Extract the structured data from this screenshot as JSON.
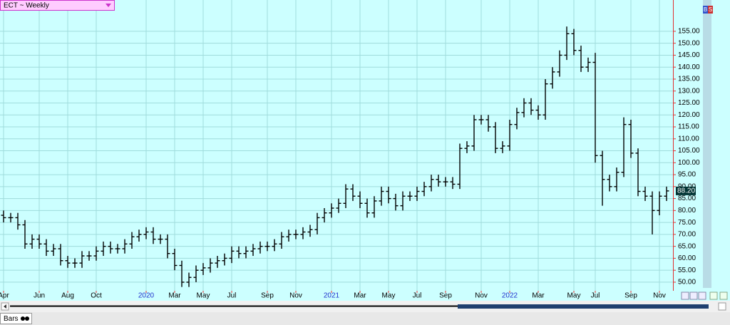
{
  "chart_data": {
    "type": "ohlc",
    "categories": [
      "Apr",
      null,
      null,
      null,
      null,
      "Jun",
      null,
      null,
      null,
      "Aug",
      null,
      null,
      null,
      "Oct",
      null,
      null,
      null,
      null,
      null,
      null,
      "2020",
      null,
      null,
      null,
      "Mar",
      null,
      null,
      null,
      "May",
      null,
      null,
      null,
      "Jul",
      null,
      null,
      null,
      null,
      "Sep",
      null,
      null,
      null,
      "Nov",
      null,
      null,
      null,
      null,
      "2021",
      null,
      null,
      null,
      "Mar",
      null,
      null,
      null,
      "May",
      null,
      null,
      null,
      "Jul",
      null,
      null,
      null,
      "Sep",
      null,
      null,
      null,
      null,
      "Nov",
      null,
      null,
      null,
      "2022",
      null,
      null,
      null,
      "Mar",
      null,
      null,
      null,
      null,
      "May",
      null,
      null,
      "Jul",
      null,
      null,
      null,
      null,
      "Sep",
      null,
      null,
      null,
      "Nov",
      null
    ],
    "open": [
      78,
      77,
      77,
      74,
      66,
      68,
      66,
      63,
      64,
      59,
      58,
      58,
      61,
      61,
      63,
      65,
      64,
      64,
      66,
      69,
      70,
      71,
      68,
      68,
      62,
      57,
      50,
      52,
      55,
      56,
      58,
      59,
      60,
      63,
      62,
      63,
      64,
      65,
      65,
      66,
      69,
      70,
      70,
      71,
      72,
      77,
      79,
      81,
      83,
      89,
      86,
      83,
      79,
      84,
      88,
      85,
      82,
      86,
      86,
      88,
      90,
      93,
      92,
      92,
      91,
      106,
      107,
      118,
      118,
      115,
      106,
      107,
      116,
      121,
      125,
      122,
      120,
      133,
      138,
      145,
      154,
      147,
      140,
      142,
      103,
      93,
      90,
      96,
      116,
      104,
      88,
      86,
      80,
      86
    ],
    "high": [
      80,
      79,
      79,
      76,
      70,
      70,
      68,
      66,
      66,
      61,
      60,
      63,
      63,
      65,
      67,
      67,
      66,
      68,
      71,
      72,
      73,
      73,
      70,
      70,
      64,
      59,
      54,
      57,
      58,
      60,
      61,
      62,
      65,
      65,
      65,
      66,
      67,
      67,
      68,
      71,
      72,
      72,
      73,
      74,
      79,
      81,
      83,
      85,
      91,
      91,
      88,
      85,
      86,
      90,
      90,
      87,
      88,
      88,
      90,
      92,
      95,
      95,
      94,
      94,
      108,
      109,
      120,
      120,
      120,
      117,
      109,
      118,
      123,
      127,
      127,
      124,
      135,
      140,
      147,
      157,
      156,
      149,
      144,
      146,
      105,
      95,
      98,
      119,
      118,
      106,
      90,
      88,
      88,
      90
    ],
    "low": [
      75,
      75,
      72,
      64,
      64,
      64,
      61,
      61,
      57,
      56,
      56,
      56,
      59,
      59,
      61,
      62,
      62,
      62,
      64,
      67,
      68,
      66,
      66,
      60,
      55,
      48,
      48,
      50,
      53,
      54,
      56,
      57,
      58,
      60,
      60,
      61,
      62,
      63,
      63,
      64,
      67,
      68,
      68,
      69,
      70,
      75,
      77,
      79,
      81,
      84,
      81,
      77,
      77,
      82,
      83,
      80,
      80,
      84,
      84,
      86,
      88,
      90,
      90,
      89,
      89,
      104,
      105,
      116,
      113,
      104,
      104,
      105,
      114,
      119,
      120,
      118,
      118,
      131,
      136,
      143,
      145,
      138,
      138,
      100,
      82,
      88,
      88,
      94,
      102,
      86,
      84,
      70,
      78,
      84
    ],
    "close": [
      77,
      77,
      74,
      66,
      68,
      66,
      63,
      64,
      59,
      58,
      58,
      61,
      61,
      63,
      65,
      64,
      64,
      66,
      69,
      70,
      71,
      68,
      68,
      62,
      57,
      50,
      52,
      55,
      56,
      58,
      59,
      60,
      63,
      62,
      63,
      64,
      65,
      65,
      66,
      69,
      70,
      70,
      71,
      72,
      77,
      79,
      81,
      83,
      89,
      86,
      83,
      79,
      84,
      88,
      85,
      82,
      86,
      86,
      88,
      90,
      93,
      92,
      92,
      91,
      106,
      107,
      118,
      118,
      115,
      106,
      107,
      116,
      121,
      125,
      122,
      120,
      133,
      138,
      145,
      154,
      147,
      140,
      142,
      103,
      93,
      90,
      96,
      116,
      104,
      88,
      86,
      80,
      86,
      88.2
    ],
    "color": "#000000",
    "ylim": [
      46.4,
      168.1
    ],
    "yticks": [
      {
        "value": 50,
        "label": "50.00"
      },
      {
        "value": 55,
        "label": "55.00"
      },
      {
        "value": 60,
        "label": "60.00"
      },
      {
        "value": 65,
        "label": "65.00"
      },
      {
        "value": 70,
        "label": "70.00"
      },
      {
        "value": 75,
        "label": "75.00"
      },
      {
        "value": 80,
        "label": "80.00"
      },
      {
        "value": 85,
        "label": "85.00"
      },
      {
        "value": 90,
        "label": "90.00"
      },
      {
        "value": 95,
        "label": "95.00"
      },
      {
        "value": 100,
        "label": "100.00"
      },
      {
        "value": 105,
        "label": "105.00"
      },
      {
        "value": 110,
        "label": "110.00"
      },
      {
        "value": 115,
        "label": "115.00"
      },
      {
        "value": 120,
        "label": "120.00"
      },
      {
        "value": 125,
        "label": "125.00"
      },
      {
        "value": 130,
        "label": "130.00"
      },
      {
        "value": 135,
        "label": "135.00"
      },
      {
        "value": 140,
        "label": "140.00"
      },
      {
        "value": 145,
        "label": "145.00"
      },
      {
        "value": 150,
        "label": "150.00"
      },
      {
        "value": 155,
        "label": "155.00"
      }
    ],
    "last_price": {
      "value": 88.2,
      "label": "88.20"
    },
    "grid": true
  },
  "ui": {
    "symbol_menu": "ECT ~ Weekly",
    "tab": "Bars",
    "order_buttons": [
      "B",
      "S"
    ]
  }
}
